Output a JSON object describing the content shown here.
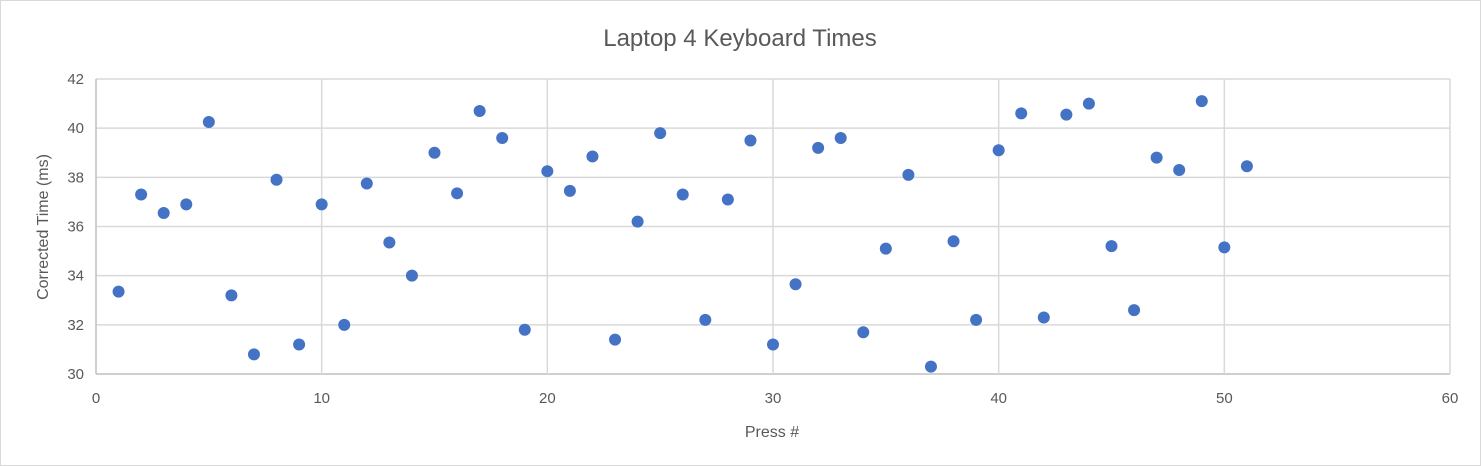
{
  "chart_data": {
    "type": "scatter",
    "title": "Laptop 4 Keyboard Times",
    "xlabel": "Press #",
    "ylabel": "Corrected Time (ms)",
    "xlim": [
      0,
      60
    ],
    "ylim": [
      30,
      42
    ],
    "x_ticks": [
      "0",
      "10",
      "20",
      "30",
      "40",
      "50",
      "60"
    ],
    "y_ticks": [
      "30",
      "32",
      "34",
      "36",
      "38",
      "40",
      "42"
    ],
    "grid": true,
    "legend": "none",
    "marker_color": "#4472c4",
    "x": [
      1,
      2,
      3,
      4,
      5,
      6,
      7,
      8,
      9,
      10,
      11,
      12,
      13,
      14,
      15,
      16,
      17,
      18,
      19,
      20,
      21,
      22,
      23,
      24,
      25,
      26,
      27,
      28,
      29,
      30,
      31,
      32,
      33,
      34,
      35,
      36,
      37,
      38,
      39,
      40,
      41,
      42,
      43,
      44,
      45,
      46,
      47,
      48,
      49,
      50,
      51
    ],
    "y": [
      33.35,
      37.3,
      36.55,
      36.9,
      40.25,
      33.2,
      30.8,
      37.9,
      31.2,
      36.9,
      32.0,
      37.75,
      35.35,
      34.0,
      39.0,
      37.35,
      40.7,
      39.6,
      31.8,
      38.25,
      37.45,
      38.85,
      31.4,
      36.2,
      39.8,
      37.3,
      32.2,
      37.1,
      39.5,
      31.2,
      33.65,
      39.2,
      39.6,
      31.7,
      35.1,
      38.1,
      30.3,
      35.4,
      32.2,
      39.1,
      40.6,
      32.3,
      40.55,
      41.0,
      35.2,
      32.6,
      38.8,
      38.3,
      41.1,
      35.15,
      38.45
    ]
  }
}
